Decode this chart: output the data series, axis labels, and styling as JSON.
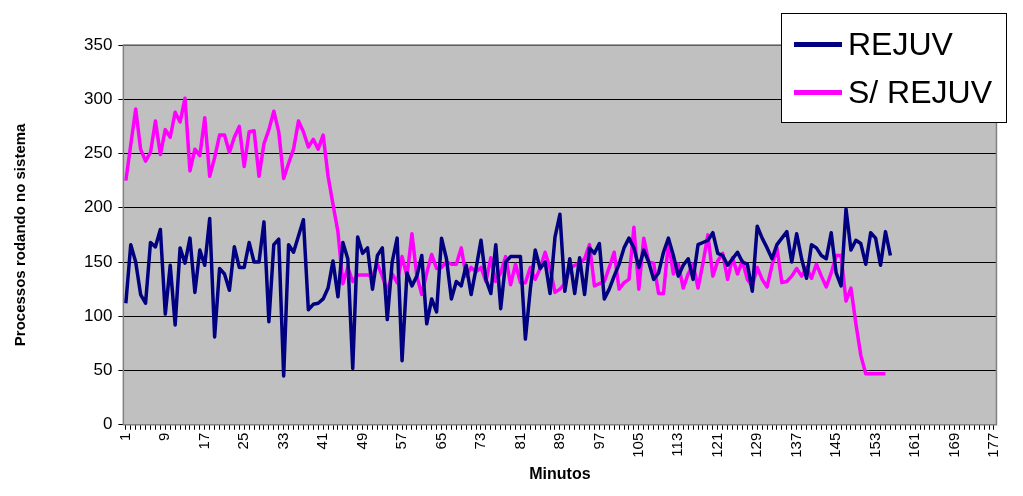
{
  "chart_data": {
    "type": "line",
    "xlabel": "Minutos",
    "ylabel": "Processos rodando no sistema",
    "categories": [
      "1",
      null,
      null,
      null,
      null,
      null,
      null,
      null,
      "9",
      null,
      null,
      null,
      null,
      null,
      null,
      null,
      "17",
      null,
      null,
      null,
      null,
      null,
      null,
      null,
      "25",
      null,
      null,
      null,
      null,
      null,
      null,
      null,
      "33",
      null,
      null,
      null,
      null,
      null,
      null,
      null,
      "41",
      null,
      null,
      null,
      null,
      null,
      null,
      null,
      "49",
      null,
      null,
      null,
      null,
      null,
      null,
      null,
      "57",
      null,
      null,
      null,
      null,
      null,
      null,
      null,
      "65",
      null,
      null,
      null,
      null,
      null,
      null,
      null,
      "73",
      null,
      null,
      null,
      null,
      null,
      null,
      null,
      "81",
      null,
      null,
      null,
      null,
      null,
      null,
      null,
      "89",
      null,
      null,
      null,
      null,
      null,
      null,
      null,
      "97",
      null,
      null,
      null,
      null,
      null,
      null,
      null,
      "105",
      null,
      null,
      null,
      null,
      null,
      null,
      null,
      "113",
      null,
      null,
      null,
      null,
      null,
      null,
      null,
      "121",
      null,
      null,
      null,
      null,
      null,
      null,
      null,
      "129",
      null,
      null,
      null,
      null,
      null,
      null,
      null,
      "137",
      null,
      null,
      null,
      null,
      null,
      null,
      null,
      "145",
      null,
      null,
      null,
      null,
      null,
      null,
      null,
      "153",
      null,
      null,
      null,
      null,
      null,
      null,
      null,
      "161",
      null,
      null,
      null,
      null,
      null,
      null,
      null,
      "169",
      null,
      null,
      null,
      null,
      null,
      null,
      null,
      "177"
    ],
    "series": [
      {
        "name": "REJUV",
        "color": "#000080",
        "values": [
          112,
          166,
          150,
          120,
          112,
          168,
          164,
          180,
          102,
          147,
          92,
          163,
          149,
          172,
          122,
          161,
          147,
          190,
          81,
          144,
          139,
          124,
          164,
          145,
          145,
          168,
          150,
          150,
          187,
          95,
          166,
          171,
          45,
          166,
          159,
          174,
          189,
          106,
          111,
          112,
          116,
          126,
          151,
          118,
          168,
          153,
          52,
          173,
          158,
          163,
          125,
          156,
          163,
          97,
          150,
          172,
          59,
          140,
          128,
          137,
          156,
          93,
          116,
          104,
          172,
          153,
          116,
          132,
          128,
          147,
          120,
          144,
          170,
          134,
          121,
          166,
          107,
          150,
          155,
          155,
          155,
          79,
          125,
          161,
          144,
          150,
          121,
          173,
          194,
          123,
          153,
          121,
          154,
          120,
          163,
          158,
          167,
          116,
          125,
          137,
          148,
          163,
          172,
          163,
          145,
          161,
          150,
          134,
          140,
          159,
          172,
          156,
          137,
          147,
          153,
          134,
          166,
          168,
          170,
          177,
          158,
          156,
          147,
          153,
          159,
          150,
          148,
          123,
          183,
          172,
          163,
          153,
          166,
          172,
          178,
          150,
          176,
          153,
          135,
          166,
          163,
          156,
          153,
          177,
          140,
          128,
          199,
          161,
          170,
          167,
          148,
          177,
          172,
          147,
          178,
          156,
          null,
          null,
          null,
          null,
          null,
          null,
          null,
          null,
          null,
          null,
          null,
          null,
          null,
          null,
          null,
          null,
          null,
          null,
          null,
          null,
          null
        ]
      },
      {
        "name": "S/ REJUV",
        "color": "#ff00ff",
        "values": [
          225,
          258,
          291,
          254,
          243,
          251,
          280,
          249,
          272,
          265,
          288,
          279,
          301,
          234,
          254,
          248,
          283,
          229,
          246,
          267,
          267,
          251,
          265,
          275,
          238,
          270,
          271,
          229,
          259,
          272,
          289,
          270,
          227,
          241,
          254,
          280,
          270,
          256,
          263,
          254,
          267,
          229,
          203,
          178,
          130,
          145,
          132,
          138,
          138,
          138,
          137,
          148,
          137,
          123,
          139,
          131,
          155,
          137,
          176,
          137,
          120,
          140,
          157,
          144,
          145,
          150,
          148,
          148,
          163,
          137,
          145,
          141,
          145,
          132,
          154,
          132,
          140,
          155,
          129,
          148,
          131,
          131,
          145,
          134,
          144,
          159,
          144,
          122,
          125,
          130,
          144,
          147,
          149,
          153,
          166,
          128,
          130,
          132,
          145,
          159,
          125,
          131,
          134,
          182,
          125,
          172,
          150,
          149,
          121,
          121,
          168,
          139,
          148,
          126,
          139,
          148,
          126,
          149,
          175,
          137,
          151,
          158,
          134,
          154,
          139,
          151,
          134,
          128,
          145,
          134,
          127,
          147,
          163,
          131,
          132,
          137,
          144,
          137,
          145,
          135,
          148,
          137,
          127,
          140,
          156,
          156,
          114,
          126,
          93,
          64,
          47,
          47,
          47,
          47,
          47,
          null,
          null,
          null,
          null,
          null,
          null,
          null,
          null,
          null,
          null,
          null,
          null,
          null,
          null,
          null,
          null,
          null,
          null,
          null,
          null,
          null,
          null
        ]
      }
    ],
    "ylim": [
      0,
      350
    ],
    "yticks": [
      0,
      50,
      100,
      150,
      200,
      250,
      300,
      350
    ],
    "grid": "y",
    "legend": "top right"
  }
}
